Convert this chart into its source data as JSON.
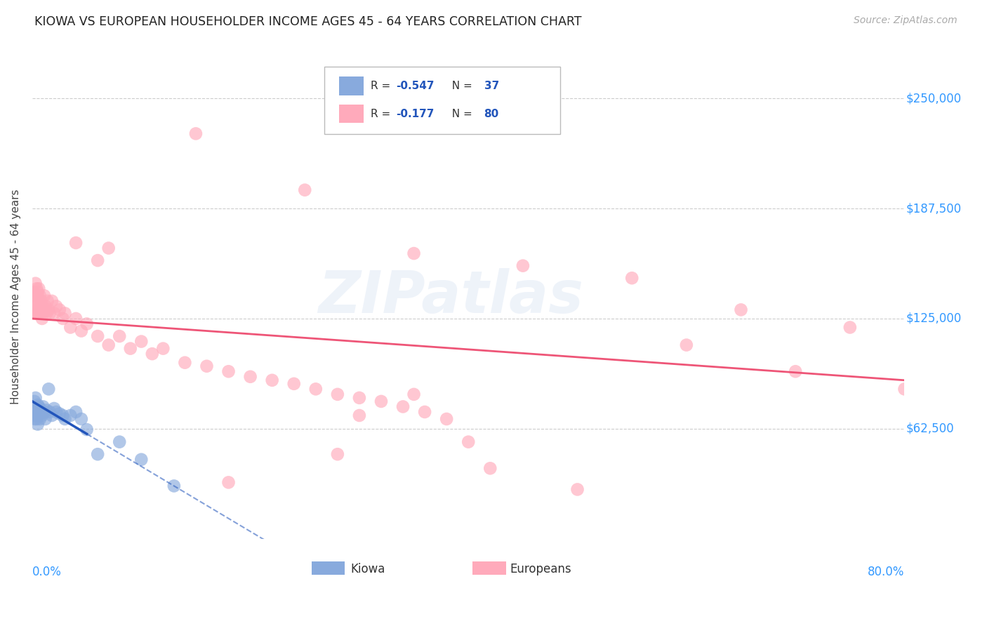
{
  "title": "KIOWA VS EUROPEAN HOUSEHOLDER INCOME AGES 45 - 64 YEARS CORRELATION CHART",
  "source": "Source: ZipAtlas.com",
  "ylabel": "Householder Income Ages 45 - 64 years",
  "xlim": [
    0.0,
    0.8
  ],
  "ylim": [
    0,
    275000
  ],
  "ytick_vals": [
    62500,
    125000,
    187500,
    250000
  ],
  "ytick_labels": [
    "$62,500",
    "$125,000",
    "$187,500",
    "$250,000"
  ],
  "grid_color": "#cccccc",
  "background_color": "#ffffff",
  "kiowa_color": "#88aadd",
  "european_color": "#ffaabb",
  "kiowa_line_color": "#2255bb",
  "european_line_color": "#ee5577",
  "kiowa_scatter_x": [
    0.001,
    0.002,
    0.002,
    0.003,
    0.003,
    0.004,
    0.004,
    0.005,
    0.005,
    0.005,
    0.006,
    0.006,
    0.007,
    0.007,
    0.008,
    0.008,
    0.009,
    0.01,
    0.011,
    0.012,
    0.013,
    0.015,
    0.016,
    0.018,
    0.02,
    0.022,
    0.025,
    0.028,
    0.03,
    0.035,
    0.04,
    0.045,
    0.05,
    0.06,
    0.08,
    0.1,
    0.13
  ],
  "kiowa_scatter_y": [
    72000,
    78000,
    68000,
    80000,
    70000,
    74000,
    68000,
    76000,
    70000,
    65000,
    72000,
    75000,
    68000,
    74000,
    71000,
    73000,
    70000,
    75000,
    72000,
    68000,
    73000,
    85000,
    72000,
    70000,
    74000,
    72000,
    71000,
    70000,
    68000,
    70000,
    72000,
    68000,
    62000,
    48000,
    55000,
    45000,
    30000
  ],
  "european_scatter_x": [
    0.001,
    0.001,
    0.002,
    0.002,
    0.003,
    0.003,
    0.003,
    0.004,
    0.004,
    0.004,
    0.005,
    0.005,
    0.005,
    0.006,
    0.006,
    0.006,
    0.007,
    0.007,
    0.008,
    0.008,
    0.009,
    0.009,
    0.01,
    0.01,
    0.011,
    0.012,
    0.013,
    0.014,
    0.015,
    0.016,
    0.018,
    0.02,
    0.022,
    0.025,
    0.028,
    0.03,
    0.035,
    0.04,
    0.045,
    0.05,
    0.06,
    0.07,
    0.08,
    0.09,
    0.1,
    0.11,
    0.12,
    0.14,
    0.16,
    0.18,
    0.2,
    0.22,
    0.24,
    0.26,
    0.28,
    0.3,
    0.32,
    0.34,
    0.36,
    0.38,
    0.15,
    0.25,
    0.35,
    0.45,
    0.55,
    0.65,
    0.75,
    0.6,
    0.7,
    0.8,
    0.35,
    0.28,
    0.42,
    0.18,
    0.5,
    0.4,
    0.3,
    0.07,
    0.06,
    0.04
  ],
  "european_scatter_y": [
    140000,
    132000,
    138000,
    128000,
    145000,
    135000,
    128000,
    142000,
    132000,
    128000,
    140000,
    138000,
    130000,
    135000,
    142000,
    128000,
    138000,
    130000,
    135000,
    128000,
    132000,
    125000,
    130000,
    128000,
    138000,
    132000,
    128000,
    135000,
    130000,
    128000,
    135000,
    128000,
    132000,
    130000,
    125000,
    128000,
    120000,
    125000,
    118000,
    122000,
    115000,
    110000,
    115000,
    108000,
    112000,
    105000,
    108000,
    100000,
    98000,
    95000,
    92000,
    90000,
    88000,
    85000,
    82000,
    80000,
    78000,
    75000,
    72000,
    68000,
    230000,
    198000,
    162000,
    155000,
    148000,
    130000,
    120000,
    110000,
    95000,
    85000,
    82000,
    48000,
    40000,
    32000,
    28000,
    55000,
    70000,
    165000,
    158000,
    168000
  ],
  "legend_kiowa_R": "-0.547",
  "legend_kiowa_N": "37",
  "legend_euro_R": "-0.177",
  "legend_euro_N": "80"
}
